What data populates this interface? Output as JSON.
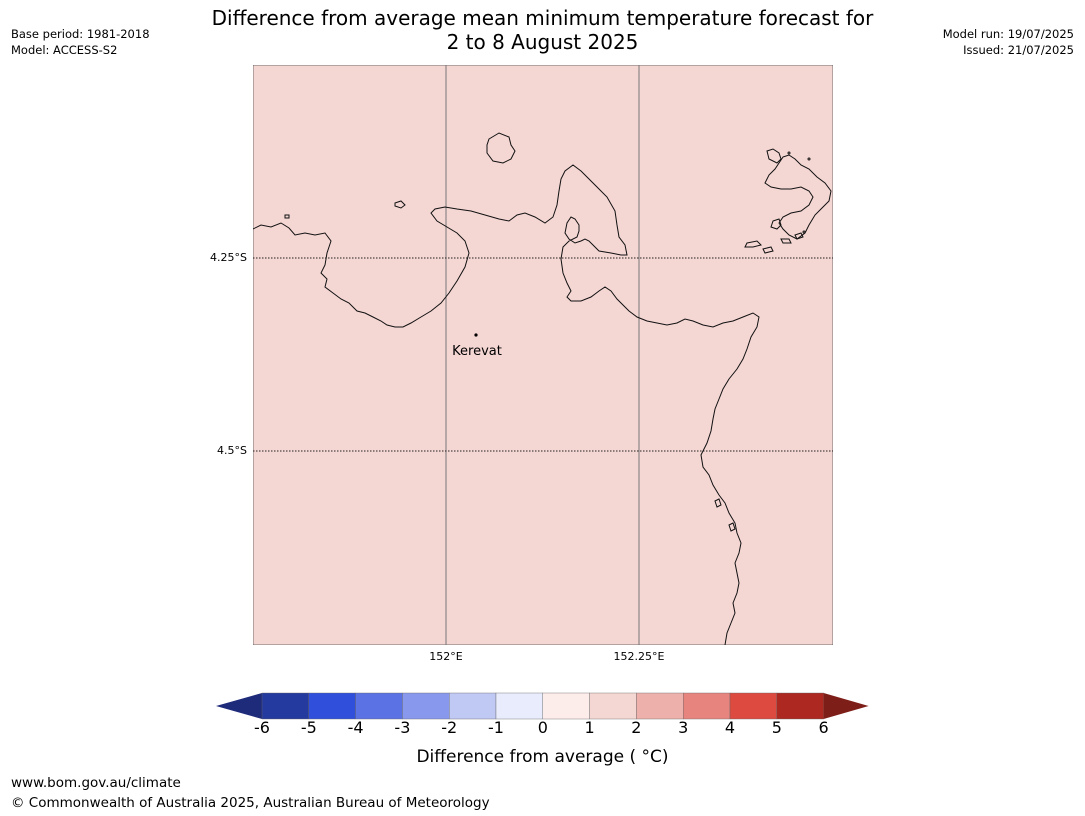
{
  "title": {
    "line1": "Difference from average mean minimum temperature forecast for",
    "line2": "2 to 8 August 2025"
  },
  "meta_left": {
    "base_period": "Base period: 1981-2018",
    "model": "Model: ACCESS-S2"
  },
  "meta_right": {
    "model_run": "Model run: 19/07/2025",
    "issued": "Issued: 21/07/2025"
  },
  "map": {
    "fill_color": "#f4d6d3",
    "place": {
      "name": "Kerevat"
    },
    "lat_labels": [
      "4.25°S",
      "4.5°S"
    ],
    "lon_labels": [
      "152°E",
      "152.25°E"
    ]
  },
  "colorbar": {
    "title": "Difference from average ( °C)",
    "ticks": [
      "-6",
      "-5",
      "-4",
      "-3",
      "-2",
      "-1",
      "0",
      "1",
      "2",
      "3",
      "4",
      "5",
      "6"
    ],
    "colors": [
      "#243a9e",
      "#3050dc",
      "#5a72e4",
      "#8898ec",
      "#c0c8f4",
      "#e8ecfc",
      "#fcecea",
      "#f4d6d3",
      "#eeb0aa",
      "#e8847e",
      "#dc4a40",
      "#ac2820"
    ],
    "under_color": "#1e2a7a",
    "over_color": "#7e1e18"
  },
  "footer": {
    "url": "www.bom.gov.au/climate",
    "copyright": "© Commonwealth of Australia 2025, Australian Bureau of Meteorology"
  }
}
